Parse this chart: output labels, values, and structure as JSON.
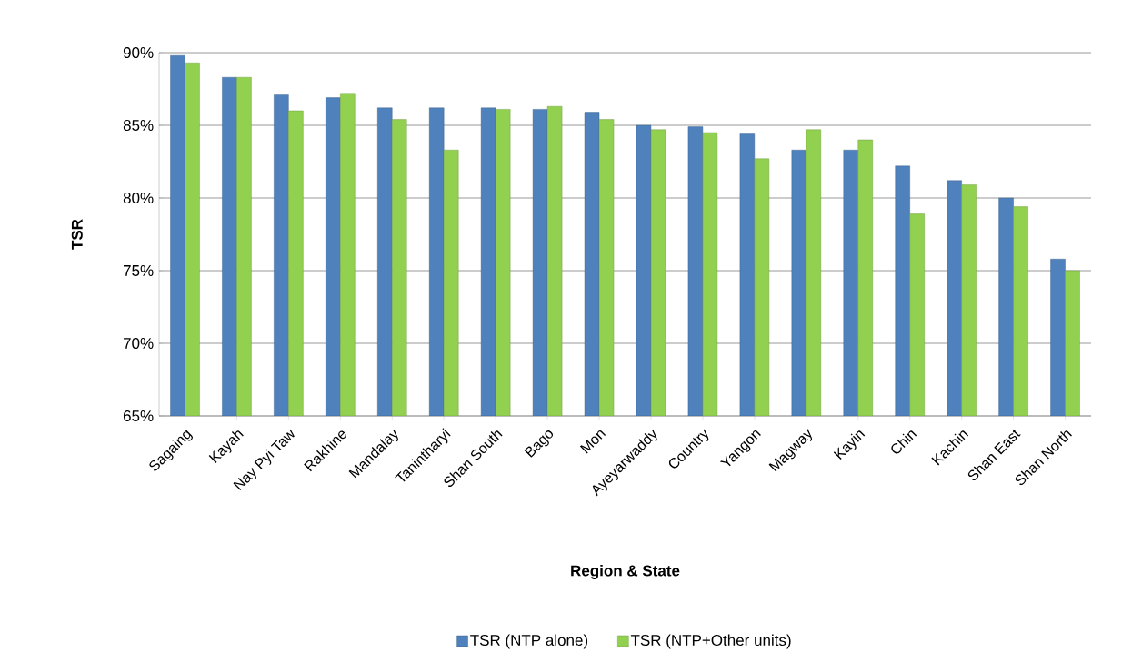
{
  "chart_data": {
    "type": "bar",
    "xlabel": "Region & State",
    "ylabel": "TSR",
    "categories": [
      "Sagaing",
      "Kayah",
      "Nay Pyi Taw",
      "Rakhine",
      "Mandalay",
      "Tanintharyi",
      "Shan South",
      "Bago",
      "Mon",
      "Ayeyarwaddy",
      "Country",
      "Yangon",
      "Magway",
      "Kayin",
      "Chin",
      "Kachin",
      "Shan East",
      "Shan North"
    ],
    "series": [
      {
        "name": "TSR (NTP alone)",
        "color": "#4f81bd",
        "values": [
          89.8,
          88.3,
          87.1,
          86.9,
          86.2,
          86.2,
          86.2,
          86.1,
          85.9,
          85.0,
          84.9,
          84.4,
          83.3,
          83.3,
          82.2,
          81.2,
          80.0,
          75.8
        ]
      },
      {
        "name": "TSR (NTP+Other units)",
        "color": "#92d050",
        "values": [
          89.3,
          88.3,
          86.0,
          87.2,
          85.4,
          83.3,
          86.1,
          86.3,
          85.4,
          84.7,
          84.5,
          82.7,
          84.7,
          84.0,
          78.9,
          80.9,
          79.4,
          75.0
        ]
      }
    ],
    "ylim": [
      65,
      90
    ],
    "yticks": [
      {
        "value": 65,
        "label": "65%"
      },
      {
        "value": 70,
        "label": "70%"
      },
      {
        "value": 75,
        "label": "75%"
      },
      {
        "value": 80,
        "label": "80%"
      },
      {
        "value": 85,
        "label": "85%"
      },
      {
        "value": 90,
        "label": "90%"
      }
    ],
    "grid": "y",
    "legend": "bottom"
  }
}
